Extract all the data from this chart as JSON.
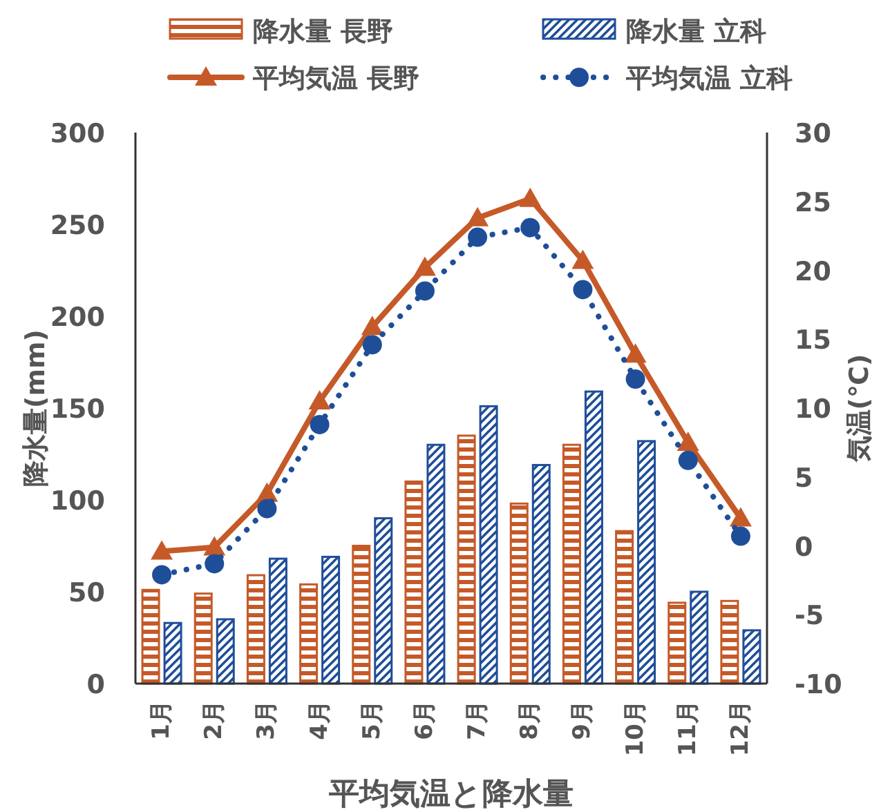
{
  "chart_data": {
    "type": "bar",
    "title": "平均気温と降水量",
    "categories": [
      "1月",
      "2月",
      "3月",
      "4月",
      "5月",
      "6月",
      "7月",
      "8月",
      "9月",
      "10月",
      "11月",
      "12月"
    ],
    "series": [
      {
        "name": "降水量 長野",
        "color": "#c55a28",
        "values": [
          51,
          49,
          59,
          54,
          75,
          110,
          135,
          98,
          130,
          83,
          44,
          45
        ]
      },
      {
        "name": "降水量 立科",
        "color": "#1f4e99",
        "values": [
          33,
          35,
          68,
          69,
          90,
          130,
          151,
          119,
          159,
          132,
          50,
          29
        ]
      },
      {
        "name": "平均気温 長野",
        "type": "line",
        "axis": "y2",
        "color": "#c55a28",
        "marker": "triangle",
        "line_style": "solid",
        "values": [
          -0.4,
          -0.1,
          3.8,
          10.5,
          15.9,
          20.2,
          23.8,
          25.2,
          20.7,
          13.9,
          7.5,
          2.0
        ]
      },
      {
        "name": "平均気温 立科",
        "type": "line",
        "axis": "y2",
        "color": "#1f4e99",
        "marker": "circle",
        "line_style": "dotted",
        "values": [
          -2.1,
          -1.3,
          2.7,
          8.8,
          14.6,
          18.5,
          22.4,
          23.1,
          18.6,
          12.1,
          6.2,
          0.7
        ]
      }
    ],
    "ylabel": "降水量(mm)",
    "y2label": "気温(℃)",
    "ylim": [
      0,
      300
    ],
    "yticks": [
      0,
      50,
      100,
      150,
      200,
      250,
      300
    ],
    "y2lim": [
      -10,
      30
    ],
    "y2ticks": [
      -10,
      -5,
      0,
      5,
      10,
      15,
      20,
      25,
      30
    ],
    "legend": "top"
  }
}
